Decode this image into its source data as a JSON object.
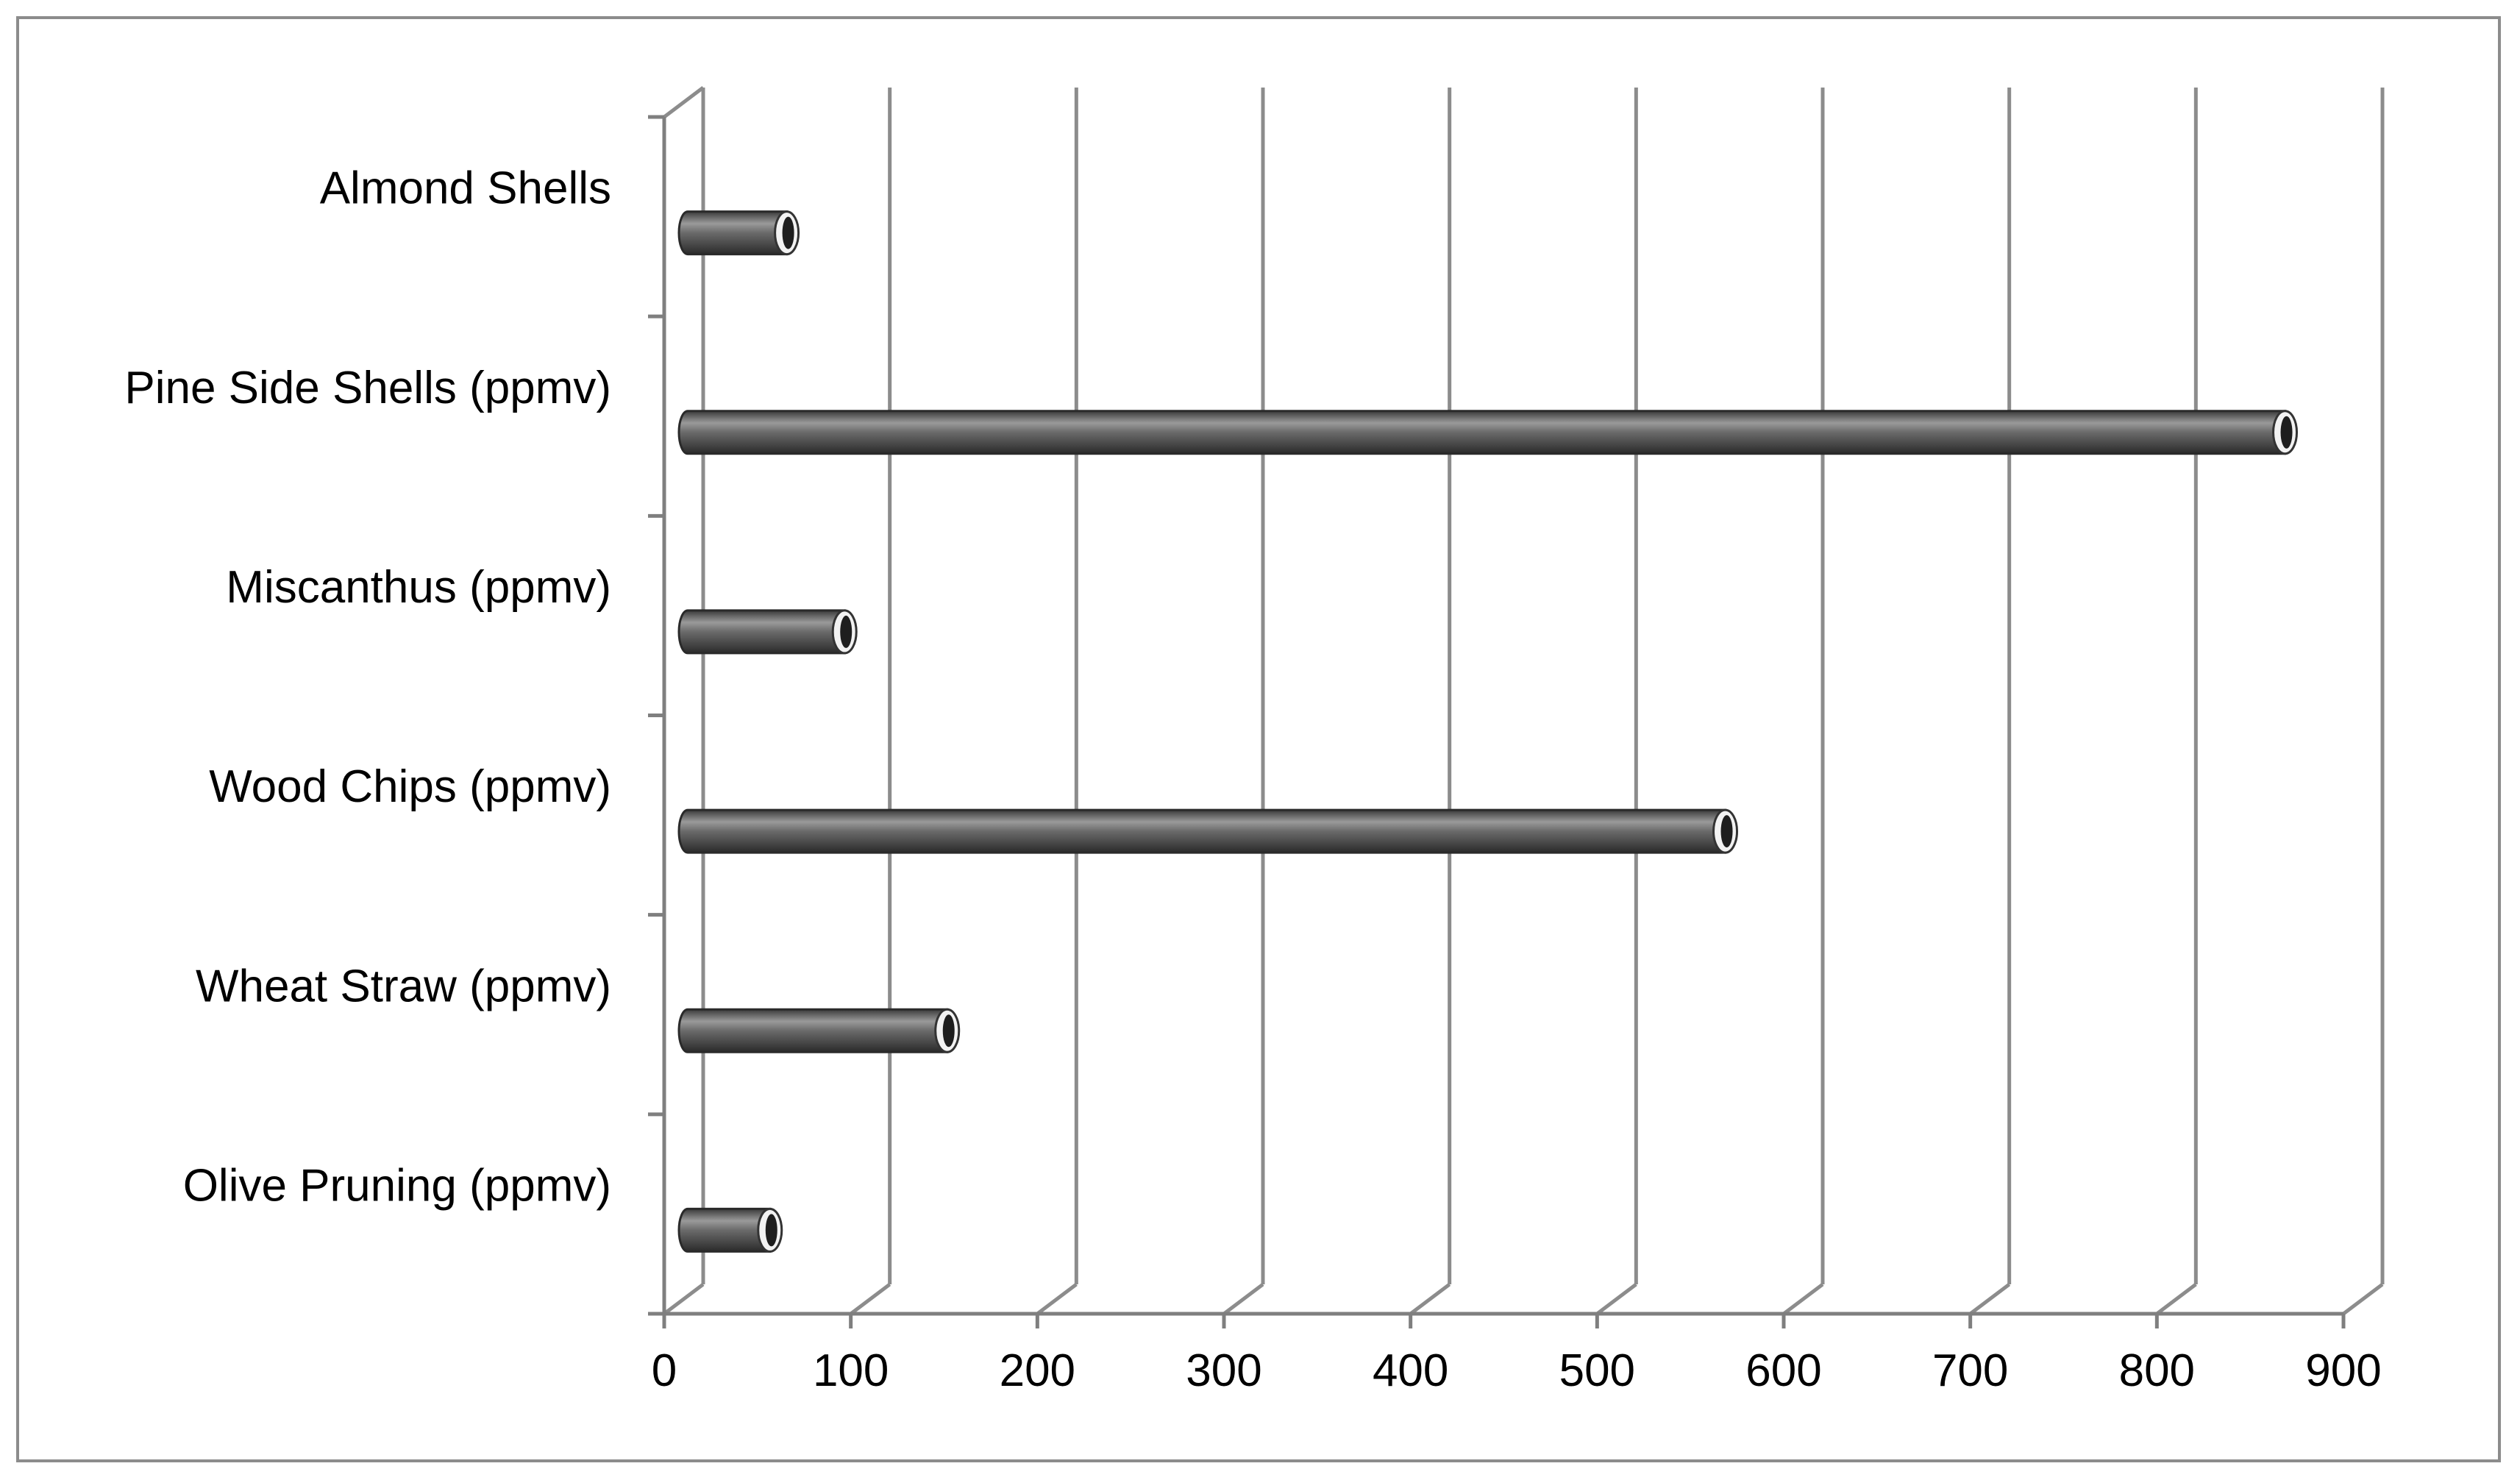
{
  "chart_data": {
    "type": "bar",
    "orientation": "horizontal",
    "style": "3d-cylinder",
    "title": "",
    "xlabel": "",
    "ylabel": "",
    "categories": [
      "Olive Pruning (ppmv)",
      "Wheat Straw (ppmv)",
      "Wood Chips (ppmv)",
      "Miscanthus (ppmv)",
      "Pine Side Shells (ppmv)",
      "Almond Shells"
    ],
    "values": [
      48,
      143,
      560,
      88,
      860,
      57
    ],
    "xlim": [
      0,
      900
    ],
    "xticks": [
      0,
      100,
      200,
      300,
      400,
      500,
      600,
      700,
      800,
      900
    ],
    "grid": true,
    "legend": "none",
    "colors": {
      "bar": "#555555",
      "bar_highlight": "#9a9a9a",
      "bar_shadow": "#2e2e2e",
      "cap": "#f2f2f2",
      "cap_outline": "#333333",
      "grid": "#8c8c8c",
      "axis": "#7f7f7f",
      "frame": "#8c8c8c"
    }
  }
}
